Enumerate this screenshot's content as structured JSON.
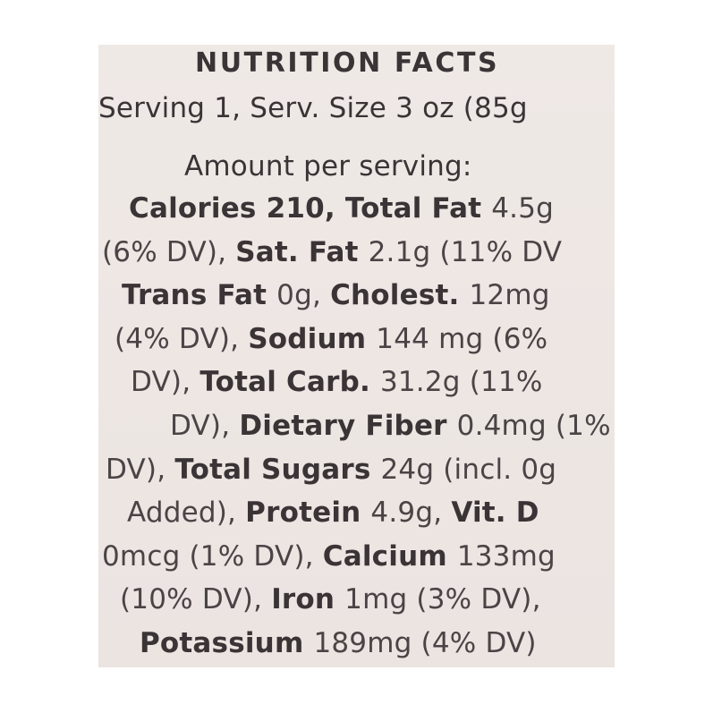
{
  "label": {
    "heading": "NUTRITION FACTS",
    "serving": "Serving 1, Serv. Size 3 oz (85g",
    "amount_per_serving": "Amount per serving:",
    "lines": [
      [
        {
          "b": "Calories 210, Total Fat "
        },
        {
          "t": "4.5g"
        }
      ],
      [
        {
          "t": "(6% DV), "
        },
        {
          "b": "Sat. Fat "
        },
        {
          "t": "2.1g (11% DV"
        }
      ],
      [
        {
          "b": "Trans Fat "
        },
        {
          "t": "0g, "
        },
        {
          "b": "Cholest. "
        },
        {
          "t": "12mg"
        }
      ],
      [
        {
          "t": "(4% DV), "
        },
        {
          "b": "Sodium "
        },
        {
          "t": "144 mg (6%"
        }
      ],
      [
        {
          "t": "DV), "
        },
        {
          "b": "Total Carb. "
        },
        {
          "t": "31.2g (11%"
        }
      ],
      [
        {
          "t": "DV), "
        },
        {
          "b": "Dietary Fiber "
        },
        {
          "t": "0.4mg (1%"
        }
      ],
      [
        {
          "t": "DV), "
        },
        {
          "b": "Total Sugars "
        },
        {
          "t": "24g (incl. 0g"
        }
      ],
      [
        {
          "t": "Added), "
        },
        {
          "b": "Protein "
        },
        {
          "t": "4.9g, "
        },
        {
          "b": "Vit. D"
        }
      ],
      [
        {
          "t": "0mcg (1% DV), "
        },
        {
          "b": "Calcium "
        },
        {
          "t": "133mg"
        }
      ],
      [
        {
          "t": "(10% DV), "
        },
        {
          "b": "Iron "
        },
        {
          "t": "1mg (3% DV),"
        }
      ],
      [
        {
          "b": "Potassium "
        },
        {
          "t": "189mg (4% DV)"
        }
      ]
    ]
  },
  "colors": {
    "background": "#ffffff",
    "label": "#ede6e3",
    "ink": "#3a3436"
  }
}
